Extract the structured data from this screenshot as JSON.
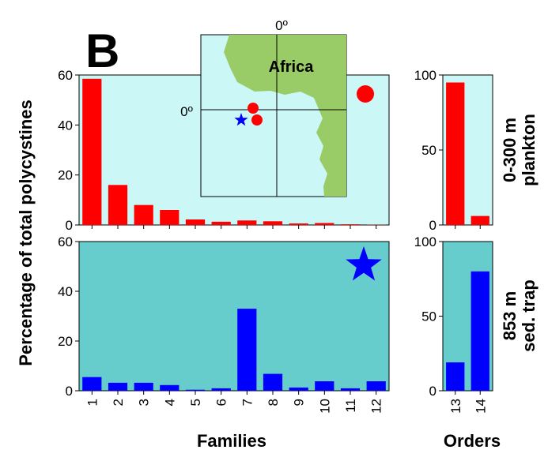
{
  "panel_letter": "B",
  "y_axis_label": "Percentage of total polycystines",
  "x_axis_label_families": "Families",
  "x_axis_label_orders": "Orders",
  "colors": {
    "top_background": "#ccf7f7",
    "bottom_background": "#66cccc",
    "top_bars": "#ff0000",
    "bottom_bars": "#0000ff",
    "land": "#99cc66",
    "map_ocean": "#ccf7f7"
  },
  "map": {
    "label_africa": "Africa",
    "label_lat": "0º",
    "label_lon": "0º",
    "markers": [
      {
        "type": "circle",
        "color": "red",
        "name": "plankton-site-1"
      },
      {
        "type": "circle",
        "color": "red",
        "name": "plankton-site-2"
      },
      {
        "type": "star",
        "color": "blue",
        "name": "sediment-trap-site"
      }
    ]
  },
  "chart_data": [
    {
      "type": "bar",
      "panel": "families-plankton",
      "categories": [
        "1",
        "2",
        "3",
        "4",
        "5",
        "6",
        "7",
        "8",
        "9",
        "10",
        "11",
        "12"
      ],
      "values": [
        58.5,
        16,
        8,
        6,
        2.2,
        1.3,
        1.8,
        1.5,
        0.6,
        0.8,
        0.3,
        0.1
      ],
      "ylim": [
        0,
        60
      ],
      "yticks": [
        0,
        20,
        40,
        60
      ],
      "ylabel": "Percentage of total polycystines",
      "right_label": [
        "0-300 m",
        "plankton"
      ],
      "marker": "red circle"
    },
    {
      "type": "bar",
      "panel": "orders-plankton",
      "categories": [
        "13",
        "14"
      ],
      "values": [
        95,
        6
      ],
      "ylim": [
        0,
        100
      ],
      "yticks": [
        0,
        50,
        100
      ]
    },
    {
      "type": "bar",
      "panel": "families-trap",
      "categories": [
        "1",
        "2",
        "3",
        "4",
        "5",
        "6",
        "7",
        "8",
        "9",
        "10",
        "11",
        "12"
      ],
      "values": [
        5.5,
        3.2,
        3.2,
        2.3,
        0.4,
        1,
        33,
        6.8,
        1.3,
        3.8,
        1,
        3.8
      ],
      "ylim": [
        0,
        60
      ],
      "yticks": [
        0,
        20,
        40,
        60
      ],
      "xlabel": "Families",
      "right_label": [
        "853 m",
        "sed. trap"
      ],
      "marker": "blue star"
    },
    {
      "type": "bar",
      "panel": "orders-trap",
      "categories": [
        "13",
        "14"
      ],
      "values": [
        19,
        80
      ],
      "ylim": [
        0,
        100
      ],
      "yticks": [
        0,
        50,
        100
      ],
      "xlabel": "Orders"
    }
  ]
}
